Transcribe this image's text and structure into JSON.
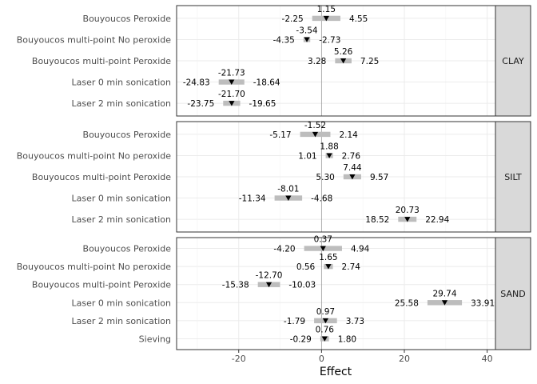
{
  "chart_data": {
    "type": "forest",
    "xlabel": "Effect",
    "ylabel": "",
    "title": "",
    "xlim": [
      -35,
      42
    ],
    "xticks": [
      -20,
      0,
      20,
      40
    ],
    "panels": [
      {
        "facet": "CLAY",
        "rows": [
          {
            "label": "Bouyoucos Peroxide",
            "estimate": 1.15,
            "low": -2.25,
            "high": 4.55
          },
          {
            "label": "Bouyoucos multi-point No peroxide",
            "estimate": -3.54,
            "low": -4.35,
            "high": -2.73
          },
          {
            "label": "Bouyoucos multi-point Peroxide",
            "estimate": 5.26,
            "low": 3.28,
            "high": 7.25
          },
          {
            "label": "Laser 0 min sonication",
            "estimate": -21.73,
            "low": -24.83,
            "high": -18.64
          },
          {
            "label": "Laser 2 min sonication",
            "estimate": -21.7,
            "low": -23.75,
            "high": -19.65
          }
        ]
      },
      {
        "facet": "SILT",
        "rows": [
          {
            "label": "Bouyoucos Peroxide",
            "estimate": -1.52,
            "low": -5.17,
            "high": 2.14
          },
          {
            "label": "Bouyoucos multi-point No peroxide",
            "estimate": 1.88,
            "low": 1.01,
            "high": 2.76
          },
          {
            "label": "Bouyoucos multi-point Peroxide",
            "estimate": 7.44,
            "low": 5.3,
            "high": 9.57
          },
          {
            "label": "Laser 0 min sonication",
            "estimate": -8.01,
            "low": -11.34,
            "high": -4.68
          },
          {
            "label": "Laser 2 min sonication",
            "estimate": 20.73,
            "low": 18.52,
            "high": 22.94
          }
        ]
      },
      {
        "facet": "SAND",
        "rows": [
          {
            "label": "Bouyoucos Peroxide",
            "estimate": 0.37,
            "low": -4.2,
            "high": 4.94
          },
          {
            "label": "Bouyoucos multi-point No peroxide",
            "estimate": 1.65,
            "low": 0.56,
            "high": 2.74
          },
          {
            "label": "Bouyoucos multi-point Peroxide",
            "estimate": -12.7,
            "low": -15.38,
            "high": -10.03
          },
          {
            "label": "Laser 0 min sonication",
            "estimate": 29.74,
            "low": 25.58,
            "high": 33.91
          },
          {
            "label": "Laser 2 min sonication",
            "estimate": 0.97,
            "low": -1.79,
            "high": 3.73
          },
          {
            "label": "Sieving",
            "estimate": 0.76,
            "low": -0.29,
            "high": 1.8
          }
        ]
      }
    ]
  }
}
